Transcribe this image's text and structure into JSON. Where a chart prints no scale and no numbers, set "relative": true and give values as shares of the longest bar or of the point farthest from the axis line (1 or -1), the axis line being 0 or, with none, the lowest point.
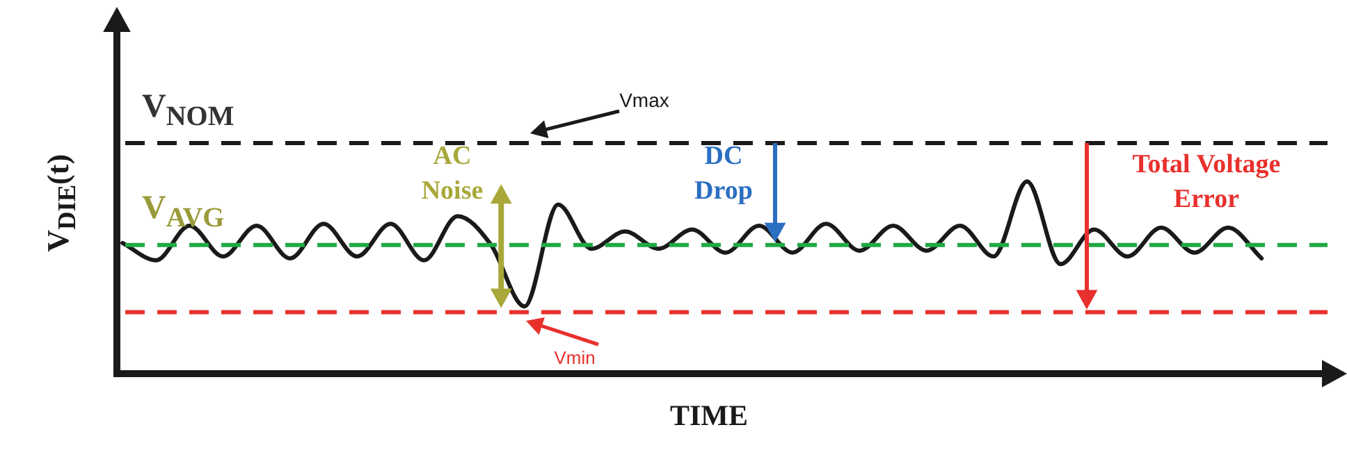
{
  "chart_data": {
    "type": "line",
    "relative": true,
    "ylabel": "V$_{DIE}$(t)",
    "xlabel": "TIME",
    "grid": false,
    "legend": false,
    "marker": "none",
    "line_style": "solid",
    "categories": [
      null,
      null,
      null,
      null,
      null,
      null,
      null,
      null,
      null,
      null,
      null,
      null,
      null,
      null,
      null,
      null,
      null,
      null,
      null,
      null,
      null,
      null,
      null,
      null,
      null,
      null,
      null,
      null,
      null,
      null,
      null,
      null,
      null,
      null,
      null
    ],
    "series": [
      {
        "color": "#1a1a1a",
        "values": [
          0.68,
          0.59,
          0.77,
          0.61,
          0.77,
          0.6,
          0.78,
          0.61,
          0.78,
          0.59,
          0.82,
          0.67,
          0.35,
          0.88,
          0.65,
          0.74,
          0.65,
          0.75,
          0.63,
          0.77,
          0.63,
          0.78,
          0.64,
          0.77,
          0.64,
          0.77,
          0.61,
          1,
          0.57,
          0.75,
          0.61,
          0.76,
          0.63,
          0.76,
          0.6
        ]
      }
    ],
    "ref_lines": [
      {
        "axis": "y",
        "value": 1.2,
        "label": "V$_{NOM}$",
        "color": "#1a1a1a",
        "line_style": "dashed"
      },
      {
        "axis": "y",
        "value": 0.67,
        "label": "V$_{AVG}$",
        "color": "#22a845",
        "line_style": "dashed"
      },
      {
        "axis": "y",
        "value": 0.32,
        "color": "#e8302c",
        "line_style": "dashed"
      }
    ],
    "annotations": [
      "Vmax",
      "Vmin",
      "AC Noise",
      "DC Drop",
      "Total Voltage Error"
    ]
  }
}
